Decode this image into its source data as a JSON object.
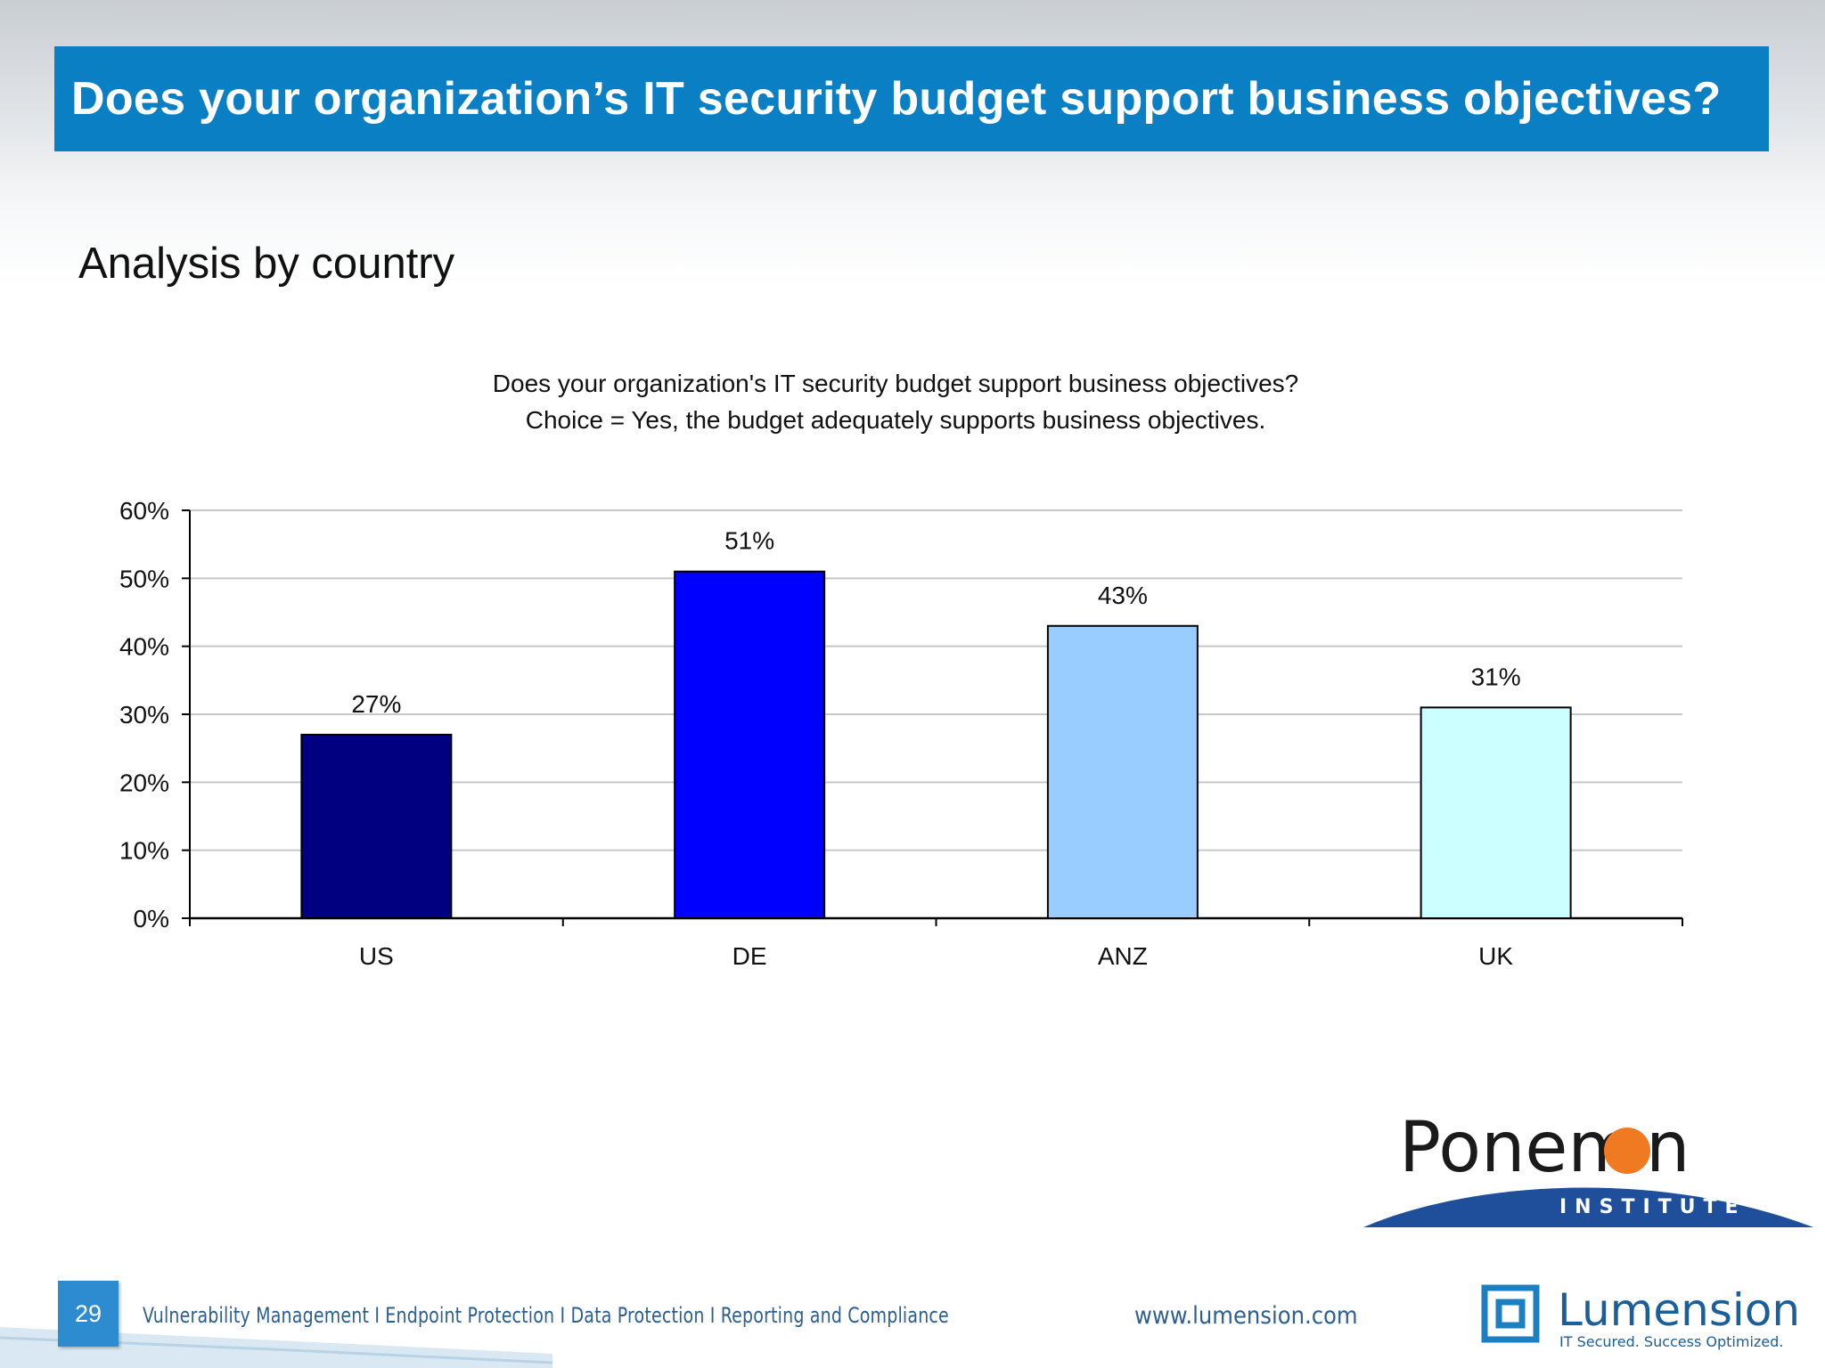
{
  "slide": {
    "title": "Does your organization’s IT security budget support business objectives?",
    "subtitle": "Analysis by country",
    "page_number": "29",
    "footer_text": "Vulnerability Management I Endpoint Protection I Data Protection I Reporting and Compliance",
    "footer_url": "www.lumension.com"
  },
  "logos": {
    "ponemon_name": "Ponemon",
    "ponemon_sub": "INSTITUTE",
    "lumension_name": "Lumension",
    "lumension_tagline": "IT Secured. Success Optimized."
  },
  "colors": {
    "title_bar": "#0a7fc4",
    "footer_text": "#2d5f8f",
    "ponemon_orange": "#f07a22",
    "ponemon_blue": "#1f4f9a"
  },
  "chart_data": {
    "type": "bar",
    "title": "Does your organization's IT security budget support business objectives?",
    "subtitle": "Choice = Yes, the budget adequately supports business objectives.",
    "categories": [
      "US",
      "DE",
      "ANZ",
      "UK"
    ],
    "values": [
      27,
      51,
      43,
      31
    ],
    "value_labels": [
      "27%",
      "51%",
      "43%",
      "31%"
    ],
    "bar_colors": [
      "#000080",
      "#0000ff",
      "#99ccff",
      "#ccffff"
    ],
    "ylim": [
      0,
      60
    ],
    "yticks": [
      "0%",
      "10%",
      "20%",
      "30%",
      "40%",
      "50%",
      "60%"
    ],
    "grid": true,
    "legend": "none"
  }
}
